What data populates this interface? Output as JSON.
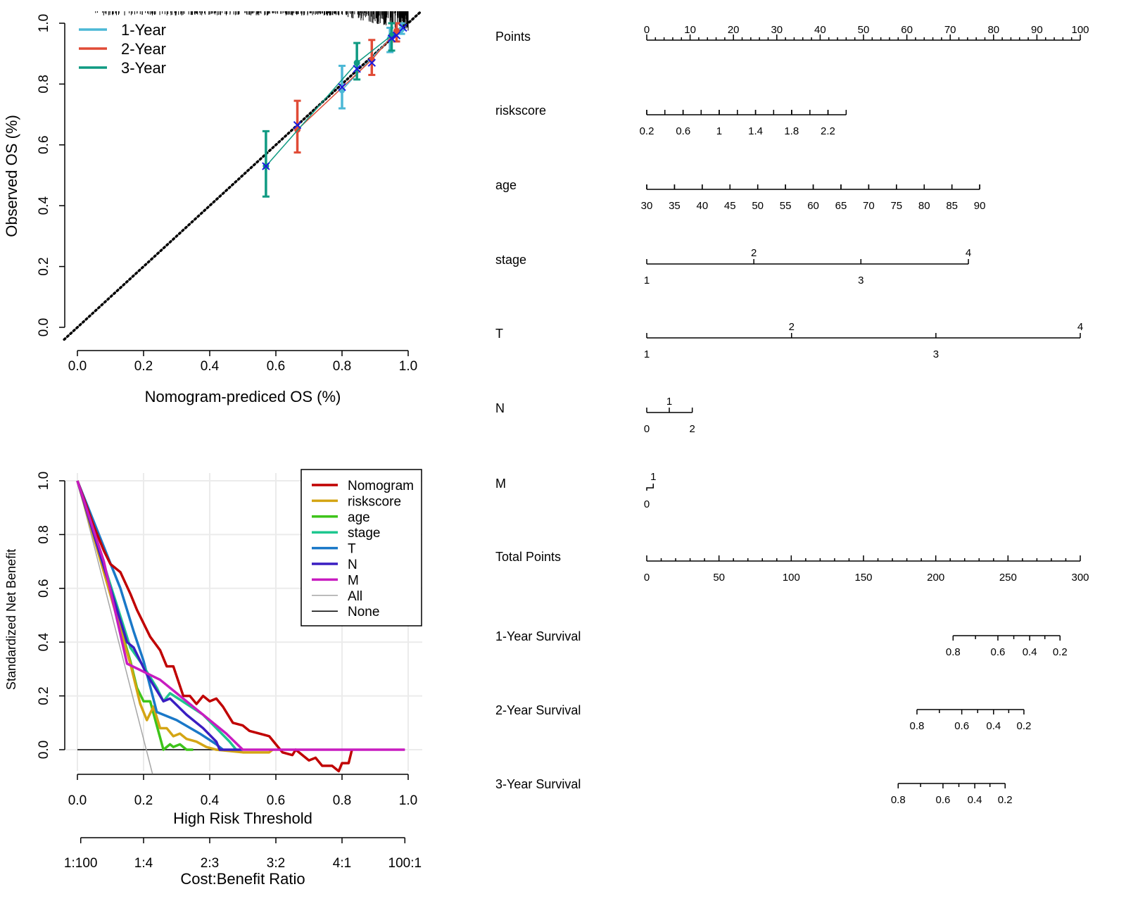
{
  "chart_data": [
    {
      "type": "line",
      "title": "",
      "xlabel": "Nomogram-prediced OS (%)",
      "ylabel": "Observed OS (%)",
      "xlim": [
        0,
        1
      ],
      "ylim": [
        0,
        1
      ],
      "xticks": [
        "0.0",
        "0.2",
        "0.4",
        "0.6",
        "0.8",
        "1.0"
      ],
      "yticks": [
        "0.0",
        "0.2",
        "0.4",
        "0.6",
        "0.8",
        "1.0"
      ],
      "legend_position": "top-left",
      "reference_line": "y=x dotted",
      "series": [
        {
          "name": "1-Year",
          "color": "#4cb8d6",
          "points": [
            {
              "x": 0.8,
              "y": 0.78,
              "lo": 0.72,
              "hi": 0.86
            },
            {
              "x": 0.945,
              "y": 0.95,
              "lo": 0.905,
              "hi": 0.985
            },
            {
              "x": 0.98,
              "y": 0.98,
              "lo": 0.965,
              "hi": 1.0
            }
          ]
        },
        {
          "name": "2-Year",
          "color": "#e04b36",
          "points": [
            {
              "x": 0.665,
              "y": 0.65,
              "lo": 0.575,
              "hi": 0.745
            },
            {
              "x": 0.89,
              "y": 0.88,
              "lo": 0.83,
              "hi": 0.945
            },
            {
              "x": 0.965,
              "y": 0.975,
              "lo": 0.94,
              "hi": 1.0
            }
          ]
        },
        {
          "name": "3-Year",
          "color": "#0f9a82",
          "points": [
            {
              "x": 0.57,
              "y": 0.53,
              "lo": 0.43,
              "hi": 0.645
            },
            {
              "x": 0.845,
              "y": 0.87,
              "lo": 0.815,
              "hi": 0.935
            },
            {
              "x": 0.95,
              "y": 0.96,
              "lo": 0.91,
              "hi": 1.0
            }
          ]
        }
      ],
      "corrected_points": [
        [
          0.57,
          0.53
        ],
        [
          0.665,
          0.665
        ],
        [
          0.8,
          0.79
        ],
        [
          0.845,
          0.85
        ],
        [
          0.89,
          0.87
        ],
        [
          0.95,
          0.95
        ],
        [
          0.965,
          0.96
        ],
        [
          0.985,
          0.985
        ]
      ],
      "marker_color": "#1a1adf"
    },
    {
      "type": "line",
      "title": "",
      "xlabel": "High Risk Threshold",
      "ylabel": "Standardized Net Benefit",
      "xlim": [
        0,
        1
      ],
      "ylim": [
        -0.1,
        1
      ],
      "xticks": [
        "0.0",
        "0.2",
        "0.4",
        "0.6",
        "0.8",
        "1.0"
      ],
      "yticks": [
        "0.0",
        "0.2",
        "0.4",
        "0.6",
        "0.8",
        "1.0"
      ],
      "secondary_xlabel": "Cost:Benefit Ratio",
      "secondary_xticks": [
        {
          "x": 0.01,
          "label": "1:100"
        },
        {
          "x": 0.2,
          "label": "1:4"
        },
        {
          "x": 0.4,
          "label": "2:3"
        },
        {
          "x": 0.6,
          "label": "3:2"
        },
        {
          "x": 0.8,
          "label": "4:1"
        },
        {
          "x": 0.99,
          "label": "100:1"
        }
      ],
      "grid": true,
      "legend_position": "top-right",
      "series": [
        {
          "name": "Nomogram",
          "color": "#c00000",
          "points": [
            [
              0,
              1
            ],
            [
              0.05,
              0.83
            ],
            [
              0.08,
              0.74
            ],
            [
              0.1,
              0.69
            ],
            [
              0.13,
              0.66
            ],
            [
              0.16,
              0.58
            ],
            [
              0.18,
              0.52
            ],
            [
              0.2,
              0.47
            ],
            [
              0.22,
              0.42
            ],
            [
              0.25,
              0.37
            ],
            [
              0.27,
              0.31
            ],
            [
              0.29,
              0.31
            ],
            [
              0.32,
              0.2
            ],
            [
              0.34,
              0.2
            ],
            [
              0.36,
              0.17
            ],
            [
              0.38,
              0.2
            ],
            [
              0.4,
              0.18
            ],
            [
              0.42,
              0.19
            ],
            [
              0.44,
              0.16
            ],
            [
              0.46,
              0.12
            ],
            [
              0.47,
              0.1
            ],
            [
              0.5,
              0.09
            ],
            [
              0.52,
              0.07
            ],
            [
              0.55,
              0.06
            ],
            [
              0.58,
              0.05
            ],
            [
              0.6,
              0.02
            ],
            [
              0.62,
              -0.01
            ],
            [
              0.65,
              -0.02
            ],
            [
              0.66,
              0.0
            ],
            [
              0.7,
              -0.04
            ],
            [
              0.72,
              -0.03
            ],
            [
              0.74,
              -0.06
            ],
            [
              0.77,
              -0.06
            ],
            [
              0.79,
              -0.08
            ],
            [
              0.8,
              -0.05
            ],
            [
              0.82,
              -0.05
            ],
            [
              0.83,
              0.0
            ]
          ]
        },
        {
          "name": "riskscore",
          "color": "#d4a514",
          "points": [
            [
              0,
              1
            ],
            [
              0.16,
              0.32
            ],
            [
              0.19,
              0.17
            ],
            [
              0.21,
              0.11
            ],
            [
              0.23,
              0.16
            ],
            [
              0.25,
              0.08
            ],
            [
              0.27,
              0.08
            ],
            [
              0.29,
              0.05
            ],
            [
              0.31,
              0.06
            ],
            [
              0.33,
              0.04
            ],
            [
              0.36,
              0.03
            ],
            [
              0.39,
              0.01
            ],
            [
              0.42,
              0.0
            ],
            [
              0.46,
              -0.005
            ],
            [
              0.5,
              -0.01
            ],
            [
              0.58,
              -0.01
            ],
            [
              0.59,
              0.0
            ]
          ]
        },
        {
          "name": "age",
          "color": "#3ec41a",
          "points": [
            [
              0,
              1
            ],
            [
              0.16,
              0.33
            ],
            [
              0.18,
              0.23
            ],
            [
              0.2,
              0.18
            ],
            [
              0.22,
              0.18
            ],
            [
              0.24,
              0.09
            ],
            [
              0.26,
              0.0
            ],
            [
              0.28,
              0.02
            ],
            [
              0.29,
              0.01
            ],
            [
              0.31,
              0.02
            ],
            [
              0.33,
              0.0
            ],
            [
              0.35,
              0.0
            ]
          ]
        },
        {
          "name": "stage",
          "color": "#1ec78f",
          "points": [
            [
              0,
              1
            ],
            [
              0.16,
              0.38
            ],
            [
              0.2,
              0.31
            ],
            [
              0.24,
              0.23
            ],
            [
              0.26,
              0.18
            ],
            [
              0.28,
              0.21
            ],
            [
              0.33,
              0.17
            ],
            [
              0.38,
              0.13
            ],
            [
              0.42,
              0.08
            ],
            [
              0.46,
              0.03
            ],
            [
              0.48,
              0.0
            ]
          ]
        },
        {
          "name": "T",
          "color": "#1a78c8",
          "points": [
            [
              0,
              1
            ],
            [
              0.13,
              0.6
            ],
            [
              0.17,
              0.44
            ],
            [
              0.2,
              0.33
            ],
            [
              0.24,
              0.14
            ],
            [
              0.3,
              0.11
            ],
            [
              0.37,
              0.06
            ],
            [
              0.42,
              0.02
            ],
            [
              0.44,
              0.0
            ]
          ]
        },
        {
          "name": "N",
          "color": "#3a1ec2",
          "points": [
            [
              0,
              1
            ],
            [
              0.15,
              0.4
            ],
            [
              0.17,
              0.38
            ],
            [
              0.21,
              0.28
            ],
            [
              0.26,
              0.18
            ],
            [
              0.28,
              0.19
            ],
            [
              0.33,
              0.13
            ],
            [
              0.38,
              0.08
            ],
            [
              0.42,
              0.03
            ],
            [
              0.43,
              0.0
            ],
            [
              0.5,
              0.0
            ]
          ]
        },
        {
          "name": "M",
          "color": "#c81cc0",
          "points": [
            [
              0,
              1
            ],
            [
              0.08,
              0.7
            ],
            [
              0.15,
              0.32
            ],
            [
              0.2,
              0.29
            ],
            [
              0.25,
              0.26
            ],
            [
              0.3,
              0.21
            ],
            [
              0.35,
              0.16
            ],
            [
              0.4,
              0.11
            ],
            [
              0.45,
              0.06
            ],
            [
              0.5,
              0.0
            ],
            [
              0.99,
              0.0
            ]
          ]
        },
        {
          "name": "All",
          "color": "#a6a6a6",
          "points": [
            [
              0,
              1
            ],
            [
              0.227,
              -0.09
            ]
          ]
        },
        {
          "name": "None",
          "color": "#000000",
          "points": [
            [
              0,
              0
            ],
            [
              0.99,
              0
            ]
          ]
        }
      ]
    },
    {
      "type": "nomogram",
      "points_scale": {
        "label": "Points",
        "min": 0,
        "max": 100,
        "labels": [
          "0",
          "10",
          "20",
          "30",
          "40",
          "50",
          "60",
          "70",
          "80",
          "90",
          "100"
        ]
      },
      "variables": [
        {
          "label": "riskscore",
          "end_points": 46,
          "ticks": [
            {
              "label": "0.2",
              "points": 0
            },
            {
              "label": "0.6",
              "points": 8.4
            },
            {
              "label": "1",
              "points": 16.7
            },
            {
              "label": "1.4",
              "points": 25.1
            },
            {
              "label": "1.8",
              "points": 33.4
            },
            {
              "label": "2.2",
              "points": 41.8
            }
          ],
          "side": "below"
        },
        {
          "label": "age",
          "ticks": [
            {
              "label": "30",
              "points": 0
            },
            {
              "label": "35",
              "points": 6.4
            },
            {
              "label": "40",
              "points": 12.8
            },
            {
              "label": "45",
              "points": 19.2
            },
            {
              "label": "50",
              "points": 25.6
            },
            {
              "label": "55",
              "points": 32
            },
            {
              "label": "60",
              "points": 38.4
            },
            {
              "label": "65",
              "points": 44.8
            },
            {
              "label": "70",
              "points": 51.2
            },
            {
              "label": "75",
              "points": 57.6
            },
            {
              "label": "80",
              "points": 64
            },
            {
              "label": "85",
              "points": 70.4
            },
            {
              "label": "90",
              "points": 76.8
            }
          ],
          "side": "below"
        },
        {
          "label": "stage",
          "ticks": [
            {
              "label": "1",
              "points": 0,
              "side": "below"
            },
            {
              "label": "2",
              "points": 24.7,
              "side": "above"
            },
            {
              "label": "3",
              "points": 49.4,
              "side": "below"
            },
            {
              "label": "4",
              "points": 74.2,
              "side": "above"
            }
          ]
        },
        {
          "label": "T",
          "ticks": [
            {
              "label": "1",
              "points": 0,
              "side": "below"
            },
            {
              "label": "2",
              "points": 33.4,
              "side": "above"
            },
            {
              "label": "3",
              "points": 66.7,
              "side": "below"
            },
            {
              "label": "4",
              "points": 100,
              "side": "above"
            }
          ]
        },
        {
          "label": "N",
          "ticks": [
            {
              "label": "0",
              "points": 0,
              "side": "below"
            },
            {
              "label": "1",
              "points": 5.2,
              "side": "above"
            },
            {
              "label": "2",
              "points": 10.5,
              "side": "below"
            }
          ]
        },
        {
          "label": "M",
          "ticks": [
            {
              "label": "0",
              "points": 0,
              "side": "below"
            },
            {
              "label": "1",
              "points": 1.5,
              "side": "above"
            }
          ]
        }
      ],
      "total_points": {
        "label": "Total Points",
        "min": 0,
        "max": 300,
        "labels": [
          "0",
          "50",
          "100",
          "150",
          "200",
          "250",
          "300"
        ]
      },
      "survival": [
        {
          "label": "1-Year Survival",
          "ticks": [
            {
              "label": "0.8",
              "total": 212
            },
            {
              "label": "0.6",
              "total": 243
            },
            {
              "label": "0.4",
              "total": 265
            },
            {
              "label": "0.2",
              "total": 286
            }
          ]
        },
        {
          "label": "2-Year Survival",
          "ticks": [
            {
              "label": "0.8",
              "total": 187
            },
            {
              "label": "0.6",
              "total": 218
            },
            {
              "label": "0.4",
              "total": 240
            },
            {
              "label": "0.2",
              "total": 261
            }
          ]
        },
        {
          "label": "3-Year Survival",
          "ticks": [
            {
              "label": "0.8",
              "total": 174
            },
            {
              "label": "0.6",
              "total": 205
            },
            {
              "label": "0.4",
              "total": 227
            },
            {
              "label": "0.2",
              "total": 248
            }
          ]
        }
      ]
    }
  ]
}
